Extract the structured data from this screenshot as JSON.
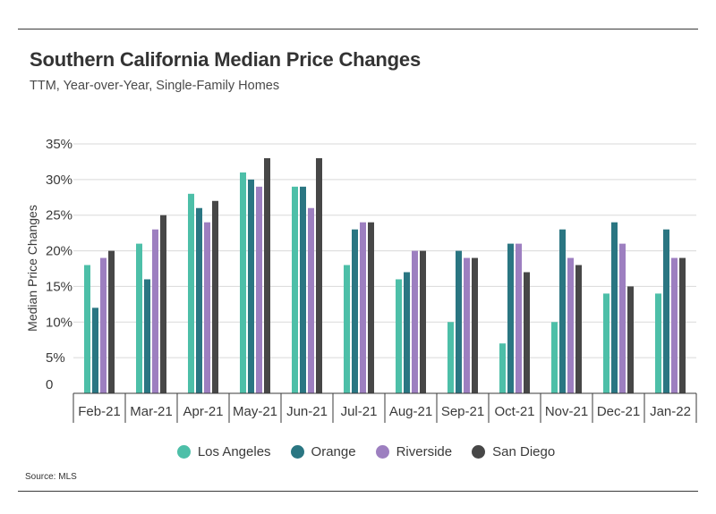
{
  "title": "Southern California Median Price Changes",
  "subtitle": "TTM, Year-over-Year, Single-Family Homes",
  "source": "Source: MLS",
  "chart_data": {
    "type": "bar",
    "categories": [
      "Feb-21",
      "Mar-21",
      "Apr-21",
      "May-21",
      "Jun-21",
      "Jul-21",
      "Aug-21",
      "Sep-21",
      "Oct-21",
      "Nov-21",
      "Dec-21",
      "Jan-22"
    ],
    "ylabel": "Median Price Changes",
    "xlabel": "",
    "ylim": [
      0,
      35
    ],
    "yticks": [
      {
        "value": 0,
        "label": "0"
      },
      {
        "value": 5,
        "label": "5%"
      },
      {
        "value": 10,
        "label": "10%"
      },
      {
        "value": 15,
        "label": "15%"
      },
      {
        "value": 20,
        "label": "20%"
      },
      {
        "value": 25,
        "label": "25%"
      },
      {
        "value": 30,
        "label": "30%"
      },
      {
        "value": 35,
        "label": "35%"
      }
    ],
    "grid": true,
    "legend_position": "bottom",
    "series": [
      {
        "name": "Los Angeles",
        "color": "#4dbfa8",
        "values": [
          18,
          21,
          28,
          31,
          29,
          18,
          16,
          10,
          7,
          10,
          14,
          14
        ]
      },
      {
        "name": "Orange",
        "color": "#2a7682",
        "values": [
          12,
          16,
          26,
          30,
          29,
          23,
          17,
          20,
          21,
          23,
          24,
          23
        ]
      },
      {
        "name": "Riverside",
        "color": "#9d7fc0",
        "values": [
          19,
          23,
          24,
          29,
          26,
          24,
          20,
          19,
          21,
          19,
          21,
          19
        ]
      },
      {
        "name": "San Diego",
        "color": "#474747",
        "values": [
          20,
          25,
          27,
          33,
          33,
          24,
          20,
          19,
          17,
          18,
          15,
          19
        ]
      }
    ]
  }
}
